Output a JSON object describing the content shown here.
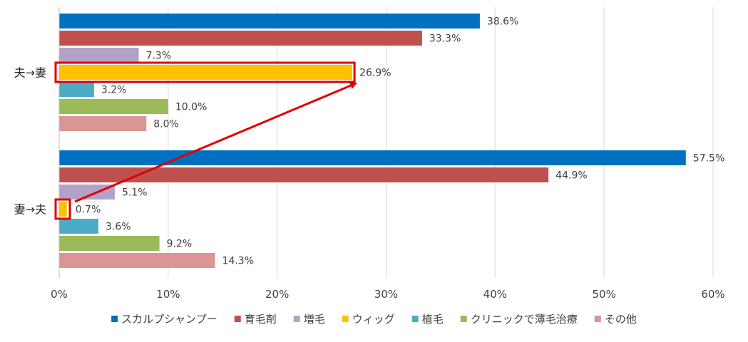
{
  "chart_data": {
    "type": "bar",
    "orientation": "horizontal",
    "categories": [
      "夫→妻",
      "妻→夫"
    ],
    "series": [
      {
        "name": "スカルプシャンプー",
        "color": "#0070C0",
        "values": [
          38.6,
          57.5
        ]
      },
      {
        "name": "育毛剤",
        "color": "#C0504D",
        "values": [
          33.3,
          44.9
        ]
      },
      {
        "name": "増毛",
        "color": "#B3A2C7",
        "values": [
          7.3,
          5.1
        ]
      },
      {
        "name": "ウィッグ",
        "color": "#FFC000",
        "values": [
          26.9,
          0.7
        ]
      },
      {
        "name": "植毛",
        "color": "#4BACC6",
        "values": [
          3.2,
          3.6
        ]
      },
      {
        "name": "クリニックで薄毛治療",
        "color": "#9BBB59",
        "values": [
          10.0,
          9.2
        ]
      },
      {
        "name": "その他",
        "color": "#D99694",
        "values": [
          8.0,
          14.3
        ]
      }
    ],
    "xlim": [
      0,
      60
    ],
    "xticks": [
      0,
      10,
      20,
      30,
      40,
      50,
      60
    ],
    "tick_suffix": "%",
    "value_suffix": "%",
    "grid": "vertical",
    "legend_position": "bottom",
    "highlight": {
      "series": "ウィッグ",
      "box_color": "#E00000",
      "arrow": "from 妻→夫 ウィッグ bar to 夫→妻 ウィッグ bar"
    }
  }
}
